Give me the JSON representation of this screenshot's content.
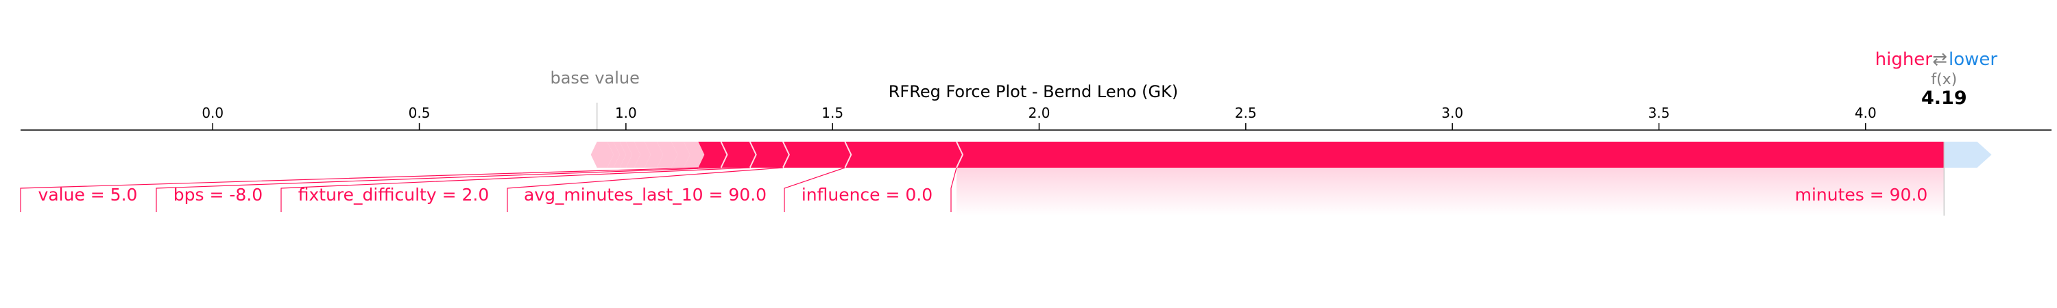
{
  "chart_data": {
    "type": "force",
    "title": "RFReg Force Plot - Bernd Leno (GK)",
    "xlim": [
      -0.465,
      4.45
    ],
    "ticks": [
      0.0,
      0.5,
      1.0,
      1.5,
      2.0,
      2.5,
      3.0,
      3.5,
      4.0
    ],
    "tick_labels": [
      "0.0",
      "0.5",
      "1.0",
      "1.5",
      "2.0",
      "2.5",
      "3.0",
      "3.5",
      "4.0"
    ],
    "base_value": 0.93,
    "base_value_label": "base value",
    "output_value": 4.19,
    "output_value_label": "4.19",
    "output_name": "f(x)",
    "legend": {
      "higher": "higher",
      "arrow": "⇄",
      "lower": "lower"
    },
    "colors": {
      "positive": "#ff0d57",
      "positive_light": "#ffc3d5",
      "negative": "#1e88e5",
      "negative_light": "#d1e6fa",
      "axis": "#000000",
      "muted": "#808080"
    },
    "positive_features": [
      {
        "label": "minutes = 90.0",
        "start": 1.8,
        "end": 4.19
      },
      {
        "label": "influence = 0.0",
        "start": 1.53,
        "end": 1.8
      },
      {
        "label": "avg_minutes_last_10 = 90.0",
        "start": 1.38,
        "end": 1.53
      },
      {
        "label": "fixture_difficulty = 2.0",
        "start": 1.3,
        "end": 1.38
      },
      {
        "label": "bps = -8.0",
        "start": 1.23,
        "end": 1.3
      },
      {
        "label": "value = 5.0",
        "start": 1.175,
        "end": 1.23
      }
    ],
    "minor_positive_bounds": [
      0.93,
      0.955,
      0.97,
      0.985,
      1.0,
      1.02,
      1.045,
      1.075,
      1.11,
      1.14,
      1.175
    ],
    "negative_band": {
      "start": 4.19,
      "end": 4.27
    }
  }
}
